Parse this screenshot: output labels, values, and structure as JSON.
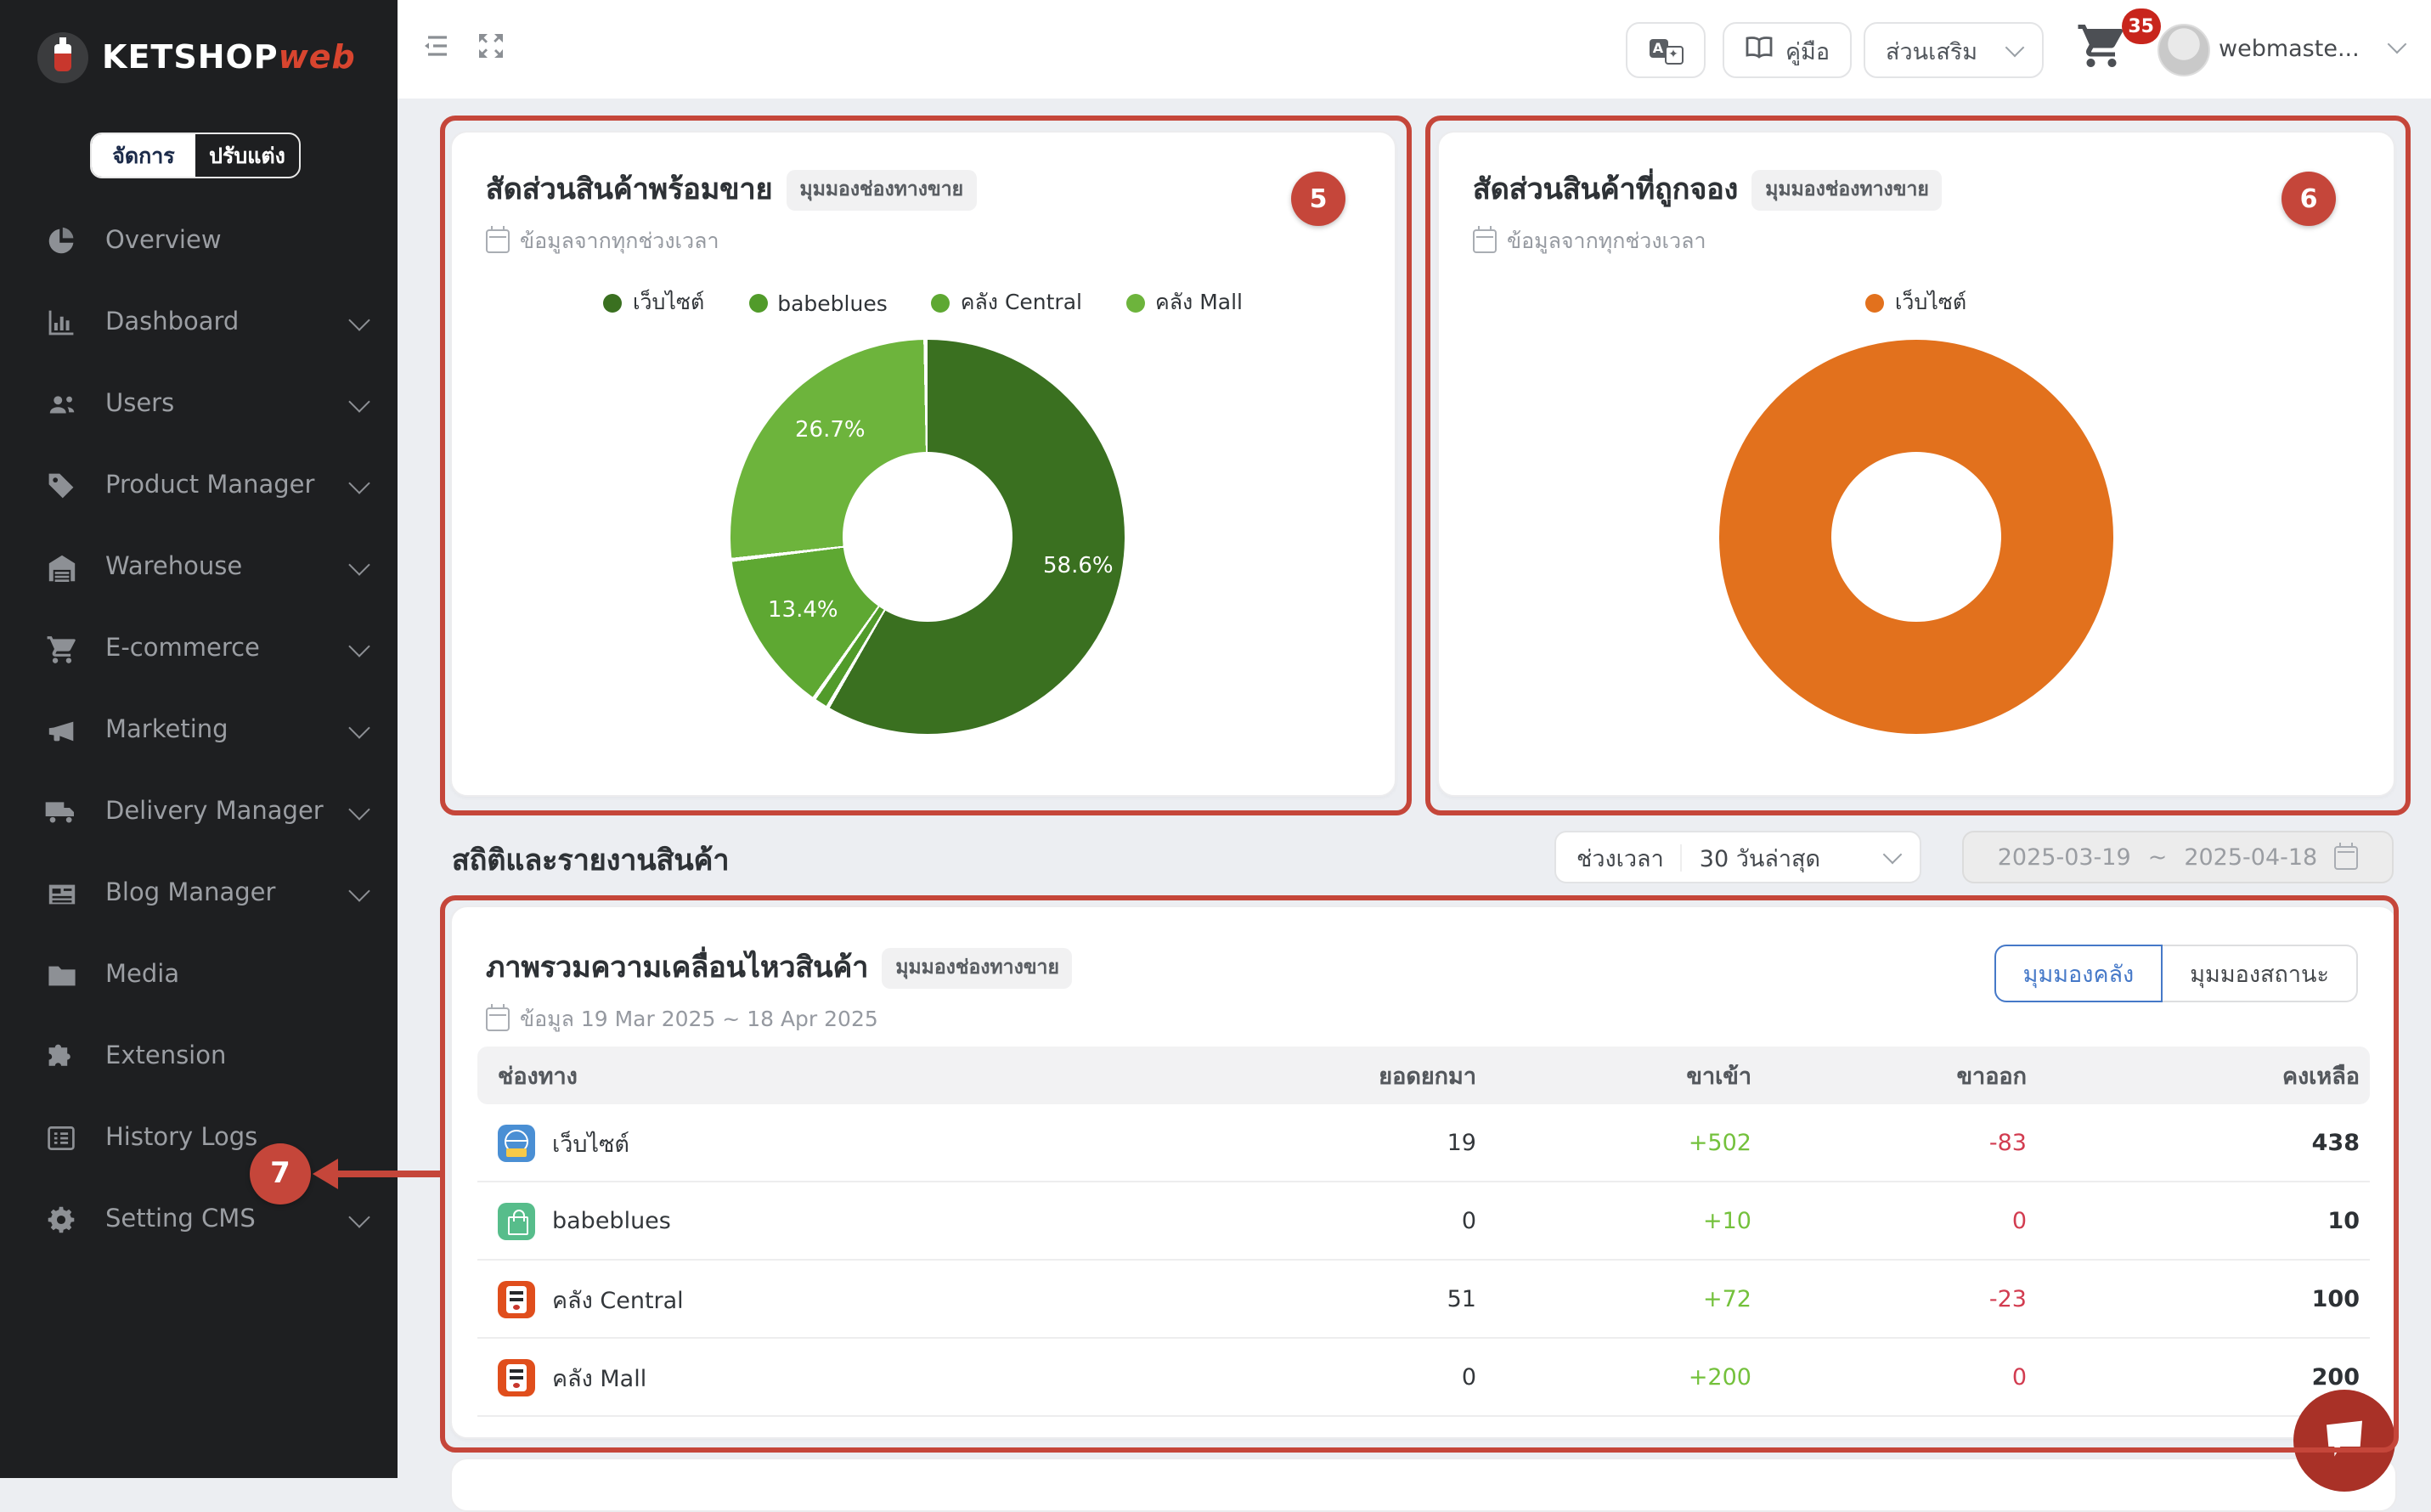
{
  "app": {
    "brand": "KETSHOP",
    "brand_suffix": "web"
  },
  "sidebar": {
    "mode_toggle": {
      "manage": "จัดการ",
      "customize": "ปรับแต่ง"
    },
    "items": [
      {
        "label": "Overview",
        "icon": "pie-chart-icon",
        "chevron": false
      },
      {
        "label": "Dashboard",
        "icon": "bar-chart-icon",
        "chevron": true
      },
      {
        "label": "Users",
        "icon": "users-icon",
        "chevron": true
      },
      {
        "label": "Product Manager",
        "icon": "tag-icon",
        "chevron": true
      },
      {
        "label": "Warehouse",
        "icon": "warehouse-icon",
        "chevron": true
      },
      {
        "label": "E-commerce",
        "icon": "cart-icon",
        "chevron": true
      },
      {
        "label": "Marketing",
        "icon": "megaphone-icon",
        "chevron": true
      },
      {
        "label": "Delivery Manager",
        "icon": "truck-icon",
        "chevron": true
      },
      {
        "label": "Blog Manager",
        "icon": "newspaper-icon",
        "chevron": true
      },
      {
        "label": "Media",
        "icon": "folder-icon",
        "chevron": false
      },
      {
        "label": "Extension",
        "icon": "puzzle-icon",
        "chevron": false
      },
      {
        "label": "History Logs",
        "icon": "list-icon",
        "chevron": false
      },
      {
        "label": "Setting CMS",
        "icon": "gear-icon",
        "chevron": true
      }
    ]
  },
  "topbar": {
    "manual_label": "คู่มือ",
    "addons_label": "ส่วนเสริม",
    "cart_badge": "35",
    "username": "webmaste..."
  },
  "filters": {
    "section_title": "สถิติและรายงานสินค้า",
    "period_label": "ช่วงเวลา",
    "period_value": "30 วันล่าสุด",
    "date_start": "2025-03-19",
    "date_separator": "~",
    "date_end": "2025-04-18"
  },
  "cards": {
    "ready_stock": {
      "title": "สัดส่วนสินค้าพร้อมขาย",
      "badge": "มุมมองช่องทางขาย",
      "subtitle": "ข้อมูลจากทุกช่วงเวลา",
      "annotation": "5"
    },
    "reserved": {
      "title": "สัดส่วนสินค้าที่ถูกจอง",
      "badge": "มุมมองช่องทางขาย",
      "subtitle": "ข้อมูลจากทุกช่วงเวลา",
      "annotation": "6"
    },
    "movement": {
      "title": "ภาพรวมความเคลื่อนไหวสินค้า",
      "badge": "มุมมองช่องทางขาย",
      "subtitle": "ข้อมูล 19 Mar 2025 ~ 18 Apr 2025",
      "view_warehouse": "มุมมองคลัง",
      "view_status": "มุมมองสถานะ",
      "annotation": "7"
    }
  },
  "chart_data": [
    {
      "type": "pie",
      "title": "สัดส่วนสินค้าพร้อมขาย",
      "legend_position": "top",
      "series": [
        {
          "name": "เว็บไซต์",
          "value": 58.6,
          "color": "#3a7020"
        },
        {
          "name": "babeblues",
          "value": 1.3,
          "color": "#519b2a"
        },
        {
          "name": "คลัง Central",
          "value": 13.4,
          "color": "#5ea832"
        },
        {
          "name": "คลัง Mall",
          "value": 26.7,
          "color": "#6db43c"
        }
      ],
      "slice_labels": [
        "58.6%",
        "13.4%",
        "26.7%"
      ]
    },
    {
      "type": "pie",
      "title": "สัดส่วนสินค้าที่ถูกจอง",
      "legend_position": "top",
      "series": [
        {
          "name": "เว็บไซต์",
          "value": 100,
          "color": "#e2711d"
        }
      ],
      "slice_labels": []
    },
    {
      "type": "table",
      "title": "ภาพรวมความเคลื่อนไหวสินค้า",
      "columns": [
        "ช่องทาง",
        "ยอดยกมา",
        "ขาเข้า",
        "ขาออก",
        "คงเหลือ"
      ],
      "rows": [
        {
          "channel": "เว็บไซต์",
          "carry": "19",
          "inflow": "+502",
          "outflow": "-83",
          "remain": "438"
        },
        {
          "channel": "babeblues",
          "carry": "0",
          "inflow": "+10",
          "outflow": "0",
          "remain": "10"
        },
        {
          "channel": "คลัง Central",
          "carry": "51",
          "inflow": "+72",
          "outflow": "-23",
          "remain": "100"
        },
        {
          "channel": "คลัง Mall",
          "carry": "0",
          "inflow": "+200",
          "outflow": "0",
          "remain": "200"
        }
      ]
    }
  ],
  "table": {
    "columns": [
      "ช่องทาง",
      "ยอดยกมา",
      "ขาเข้า",
      "ขาออก",
      "คงเหลือ"
    ],
    "rows": [
      {
        "channel": "เว็บไซต์",
        "icon": "globe-channel-icon",
        "carry": "19",
        "inflow": "+502",
        "outflow": "-83",
        "remain": "438"
      },
      {
        "channel": "babeblues",
        "icon": "bag-channel-icon",
        "carry": "0",
        "inflow": "+10",
        "outflow": "0",
        "remain": "10"
      },
      {
        "channel": "คลัง Central",
        "icon": "ketshop-channel-icon",
        "carry": "51",
        "inflow": "+72",
        "outflow": "-23",
        "remain": "100"
      },
      {
        "channel": "คลัง Mall",
        "icon": "ketshop-channel-icon",
        "carry": "0",
        "inflow": "+200",
        "outflow": "0",
        "remain": "200"
      }
    ]
  },
  "annotations": {
    "badge5": "5",
    "badge6": "6",
    "badge7": "7"
  },
  "colors": {
    "annotation_red": "#c5463a",
    "sidebar_bg": "#1e1f21",
    "accent_blue": "#4679c8",
    "positive_green": "#74c13c",
    "negative_red": "#d23c50",
    "donut_orange": "#e2711d",
    "cart_badge_red": "#c8251c"
  }
}
